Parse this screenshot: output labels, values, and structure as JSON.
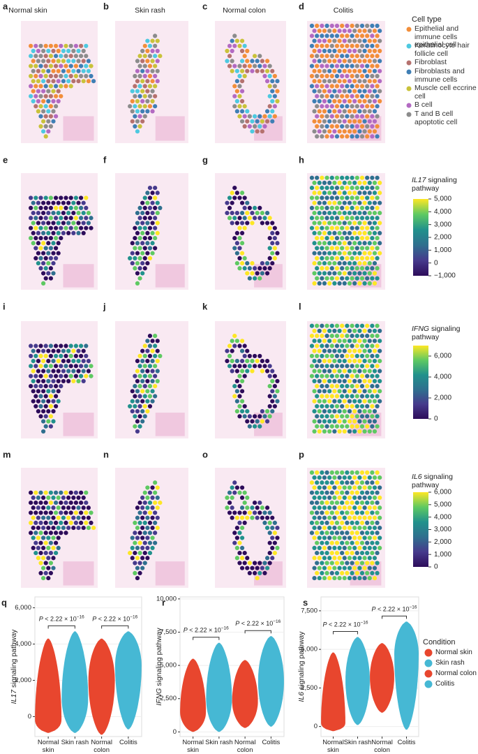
{
  "figure": {
    "columns": [
      "Normal skin",
      "Skin rash",
      "Normal colon",
      "Colitis"
    ],
    "panel_letters": [
      "a",
      "b",
      "c",
      "d",
      "e",
      "f",
      "g",
      "h",
      "i",
      "j",
      "k",
      "l",
      "m",
      "n",
      "o",
      "p"
    ],
    "cell_type_legend": {
      "title": "Cell type",
      "items": [
        {
          "name": "Epithelial and immune cells epithelial cell",
          "color": "#f28e3a"
        },
        {
          "name": "Keratinocyte hair follicle cell",
          "color": "#4ec9e0"
        },
        {
          "name": "Fibroblast",
          "color": "#b5716e"
        },
        {
          "name": "Fibroblasts and immune cells",
          "color": "#3f7fb5"
        },
        {
          "name": "Muscle cell eccrine cell",
          "color": "#c9c23a"
        },
        {
          "name": "B cell",
          "color": "#b36ac2"
        },
        {
          "name": "T and B cell apoptotic cell",
          "color": "#8c8c8c"
        }
      ]
    },
    "colormap": [
      "#2d0c5a",
      "#463a8c",
      "#2f6f8e",
      "#21918c",
      "#5ec962",
      "#fde725"
    ],
    "colorbars": [
      {
        "gene": "IL17",
        "label": " signaling pathway",
        "lim": [
          -1000,
          5000
        ],
        "ticks": [
          {
            "value": -1000,
            "label": "−1,000"
          },
          0,
          {
            "value": 1000,
            "label": "1,000"
          },
          {
            "value": 2000,
            "label": "2,000"
          },
          {
            "value": 3000,
            "label": "3,000"
          },
          {
            "value": 4000,
            "label": "4,000"
          },
          {
            "value": 5000,
            "label": "5,000"
          }
        ]
      },
      {
        "gene": "IFNG",
        "label": " signaling pathway",
        "lim": [
          0,
          7000
        ],
        "ticks": [
          0,
          {
            "value": 2000,
            "label": "2,000"
          },
          {
            "value": 4000,
            "label": "4,000"
          },
          {
            "value": 6000,
            "label": "6,000"
          }
        ]
      },
      {
        "gene": "IL6",
        "label": " signaling pathway",
        "lim": [
          0,
          6000
        ],
        "ticks": [
          0,
          {
            "value": 1000,
            "label": "1,000"
          },
          {
            "value": 2000,
            "label": "2,000"
          },
          {
            "value": 3000,
            "label": "3,000"
          },
          {
            "value": 4000,
            "label": "4,000"
          },
          {
            "value": 5000,
            "label": "5,000"
          },
          {
            "value": 6000,
            "label": "6,000"
          }
        ]
      }
    ]
  },
  "chart_data": [
    {
      "type": "violin",
      "panel": "q",
      "gene": "IL17",
      "y_label": " signaling pathway",
      "categories": [
        "Normal skin",
        "Skin rash",
        "Normal colon",
        "Colitis"
      ],
      "colors": [
        "#e8462e",
        "#46b8d4",
        "#e8462e",
        "#46b8d4"
      ],
      "low": [
        -900,
        -900,
        -1000,
        -700
      ],
      "mode": [
        -200,
        1000,
        2000,
        2800
      ],
      "high": [
        4300,
        4700,
        4300,
        4700
      ],
      "ylim": [
        -1100,
        6600
      ],
      "yticks": [
        0,
        {
          "value": 2000,
          "label": "2,000"
        },
        {
          "value": 4000,
          "label": "4,000"
        },
        {
          "value": 6000,
          "label": "6,000"
        }
      ],
      "annotations": [
        {
          "symbol": "P",
          "text": " < 2.22 × 10",
          "exponent": "−16"
        },
        {
          "symbol": "P",
          "text": " < 2.22 × 10",
          "exponent": "−16"
        }
      ]
    },
    {
      "type": "violin",
      "panel": "r",
      "gene": "IFNG",
      "y_label": " signaling pathway",
      "categories": [
        "Normal skin",
        "Skin rash",
        "Normal colon",
        "Colitis"
      ],
      "colors": [
        "#e8462e",
        "#46b8d4",
        "#e8462e",
        "#46b8d4"
      ],
      "low": [
        0,
        0,
        300,
        400
      ],
      "mode": [
        1500,
        2500,
        2300,
        3800
      ],
      "high": [
        5500,
        6700,
        5400,
        7200
      ],
      "ylim": [
        -350,
        10150
      ],
      "yticks": [
        0,
        {
          "value": 2500,
          "label": "2,500"
        },
        {
          "value": 5000,
          "label": "5,000"
        },
        {
          "value": 7500,
          "label": "7,500"
        },
        {
          "value": 10000,
          "label": "10,000"
        }
      ],
      "annotations": [
        {
          "symbol": "P",
          "text": " < 2.22 × 10",
          "exponent": "−16"
        },
        {
          "symbol": "P",
          "text": " < 2.22 × 10",
          "exponent": "−16"
        }
      ]
    },
    {
      "type": "violin",
      "panel": "s",
      "gene": "IL6",
      "y_label": " signaling pathway",
      "categories": [
        "Normal skin",
        "Skin rash",
        "Normal colon",
        "Colitis"
      ],
      "colors": [
        "#e8462e",
        "#46b8d4",
        "#e8462e",
        "#46b8d4"
      ],
      "low": [
        -300,
        100,
        900,
        -200
      ],
      "mode": [
        200,
        3000,
        3200,
        4700
      ],
      "high": [
        4800,
        5800,
        5400,
        6800
      ],
      "ylim": [
        -650,
        8400
      ],
      "yticks": [
        0,
        {
          "value": 2500,
          "label": "2,500"
        },
        {
          "value": 5000,
          "label": "5,000"
        },
        {
          "value": 7500,
          "label": "7,500"
        }
      ],
      "annotations": [
        {
          "symbol": "P",
          "text": " < 2.22 × 10",
          "exponent": "−16"
        },
        {
          "symbol": "P",
          "text": " < 2.22 × 10",
          "exponent": "−16"
        }
      ]
    }
  ],
  "condition_legend": {
    "title": "Condition",
    "items": [
      {
        "name": "Normal skin",
        "color": "#e8462e"
      },
      {
        "name": "Skin rash",
        "color": "#46b8d4"
      },
      {
        "name": "Normal colon",
        "color": "#e8462e"
      },
      {
        "name": "Colitis",
        "color": "#46b8d4"
      }
    ]
  }
}
